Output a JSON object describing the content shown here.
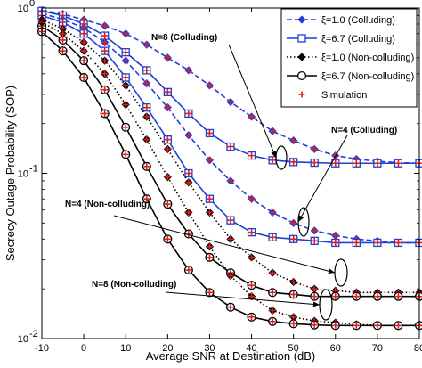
{
  "chart_data": {
    "type": "line",
    "title": "",
    "xlabel": "Average SNR at Destination (dB)",
    "ylabel": "Secrecy Outage Probability (SOP)",
    "yscale": "log",
    "xlim": [
      -10,
      80
    ],
    "ylim": [
      0.01,
      1
    ],
    "grid": false,
    "legend_position": "top-right",
    "x_ticks": [
      -10,
      0,
      10,
      20,
      30,
      40,
      50,
      60,
      70,
      80
    ],
    "x_tick_labels": [
      "-10",
      "0",
      "10",
      "20",
      "30",
      "40",
      "50",
      "60",
      "70",
      "80"
    ],
    "y_ticks": [
      0.01,
      0.1,
      1
    ],
    "y_tick_labels": [
      "10",
      "10",
      "10"
    ],
    "y_tick_exponents": [
      "-2",
      "-1",
      "0"
    ],
    "x": [
      -10,
      -5,
      0,
      5,
      10,
      15,
      20,
      25,
      30,
      35,
      40,
      45,
      50,
      55,
      60,
      65,
      70,
      75,
      80
    ],
    "legend": [
      {
        "label": "ξ=1.0 (Colluding)",
        "color": "#1f3fd6",
        "dash": "dashed",
        "marker": "diamond"
      },
      {
        "label": "ξ=6.7 (Colluding)",
        "color": "#1f3fd6",
        "dash": "solid",
        "marker": "square"
      },
      {
        "label": "ξ=1.0 (Non-colluding)",
        "color": "#000000",
        "dash": "dotted",
        "marker": "diamond"
      },
      {
        "label": "ξ=6.7 (Non-colluding)",
        "color": "#000000",
        "dash": "solid",
        "marker": "circle"
      },
      {
        "label": "Simulation",
        "color": "#e0201e",
        "dash": "none",
        "marker": "plus"
      }
    ],
    "series": [
      {
        "group": "N=8",
        "style": 0,
        "values": [
          0.97,
          0.92,
          0.85,
          0.78,
          0.7,
          0.6,
          0.5,
          0.42,
          0.34,
          0.27,
          0.22,
          0.18,
          0.158,
          0.14,
          0.128,
          0.122,
          0.118,
          0.116,
          0.115
        ]
      },
      {
        "group": "N=8",
        "style": 1,
        "values": [
          0.96,
          0.9,
          0.8,
          0.68,
          0.54,
          0.42,
          0.31,
          0.23,
          0.175,
          0.145,
          0.128,
          0.12,
          0.117,
          0.116,
          0.115,
          0.115,
          0.115,
          0.115,
          0.115
        ]
      },
      {
        "group": "N=4",
        "style": 0,
        "values": [
          0.93,
          0.85,
          0.76,
          0.62,
          0.48,
          0.35,
          0.25,
          0.17,
          0.12,
          0.09,
          0.07,
          0.058,
          0.05,
          0.045,
          0.042,
          0.04,
          0.039,
          0.038,
          0.038
        ]
      },
      {
        "group": "N=4",
        "style": 1,
        "values": [
          0.9,
          0.82,
          0.7,
          0.55,
          0.38,
          0.25,
          0.16,
          0.1,
          0.07,
          0.052,
          0.044,
          0.041,
          0.04,
          0.039,
          0.038,
          0.038,
          0.038,
          0.038,
          0.038
        ]
      },
      {
        "group": "N=4",
        "style": 2,
        "values": [
          0.85,
          0.75,
          0.62,
          0.48,
          0.34,
          0.22,
          0.14,
          0.088,
          0.058,
          0.04,
          0.031,
          0.025,
          0.022,
          0.02,
          0.0195,
          0.019,
          0.019,
          0.019,
          0.019
        ]
      },
      {
        "group": "N=4",
        "style": 3,
        "values": [
          0.78,
          0.64,
          0.48,
          0.32,
          0.19,
          0.11,
          0.065,
          0.043,
          0.031,
          0.025,
          0.021,
          0.019,
          0.0185,
          0.018,
          0.018,
          0.018,
          0.018,
          0.018,
          0.018
        ]
      },
      {
        "group": "N=8",
        "style": 2,
        "values": [
          0.82,
          0.7,
          0.55,
          0.4,
          0.26,
          0.16,
          0.095,
          0.058,
          0.036,
          0.024,
          0.018,
          0.0148,
          0.0135,
          0.0128,
          0.0125,
          0.0122,
          0.012,
          0.012,
          0.012
        ]
      },
      {
        "group": "N=8",
        "style": 3,
        "values": [
          0.72,
          0.55,
          0.38,
          0.23,
          0.13,
          0.07,
          0.04,
          0.026,
          0.019,
          0.0155,
          0.0135,
          0.0127,
          0.0123,
          0.0121,
          0.012,
          0.012,
          0.012,
          0.012,
          0.012
        ]
      }
    ],
    "annotations": [
      {
        "text": "N=8 (Colluding)"
      },
      {
        "text": "N=4 (Colluding)"
      },
      {
        "text": "N=4 (Non-colluding)"
      },
      {
        "text": "N=8 (Non-colluding)"
      }
    ]
  }
}
